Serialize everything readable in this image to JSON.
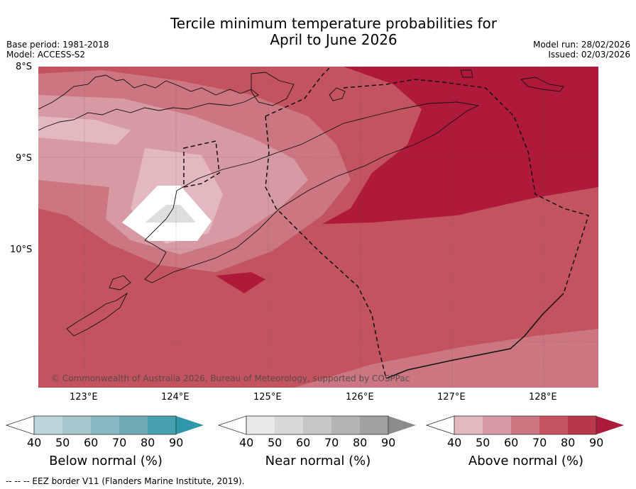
{
  "title": {
    "line1": "Tercile minimum temperature probabilities for",
    "line2": "April to June 2026"
  },
  "meta": {
    "base_period": "Base period: 1981-2018",
    "model": "Model: ACCESS-S2",
    "model_run": "Model run: 28/02/2026",
    "issued": "Issued: 02/03/2026"
  },
  "map": {
    "lat_labels": [
      "8°S",
      "9°S",
      "10°S"
    ],
    "lon_labels": [
      "123°E",
      "124°E",
      "125°E",
      "126°E",
      "127°E",
      "128°E"
    ],
    "copyright": "© Commonwealth of Australia 2026, Bureau of Meteorology, supported by COSPPac"
  },
  "colorbars": [
    {
      "label": "Below normal (%)",
      "ticks": [
        "40",
        "50",
        "60",
        "70",
        "80",
        "90"
      ],
      "colors": [
        "#bdd4db",
        "#a5c6cc",
        "#8ab8c1",
        "#6eaab5",
        "#47a0b0",
        "#2f99ab"
      ]
    },
    {
      "label": "Near normal (%)",
      "ticks": [
        "40",
        "50",
        "60",
        "70",
        "80",
        "90"
      ],
      "colors": [
        "#e8e8e8",
        "#d8d8d8",
        "#c6c6c6",
        "#b3b3b3",
        "#a0a0a0",
        "#8c8c8c"
      ]
    },
    {
      "label": "Above normal (%)",
      "ticks": [
        "40",
        "50",
        "60",
        "70",
        "80",
        "90"
      ],
      "colors": [
        "#e4b8bf",
        "#d79aa3",
        "#cb7680",
        "#c3545f",
        "#b9374a",
        "#ad1a3a"
      ]
    }
  ],
  "footer": "--  --  -- EEZ border V11 (Flanders Marine Institute, 2019)."
}
